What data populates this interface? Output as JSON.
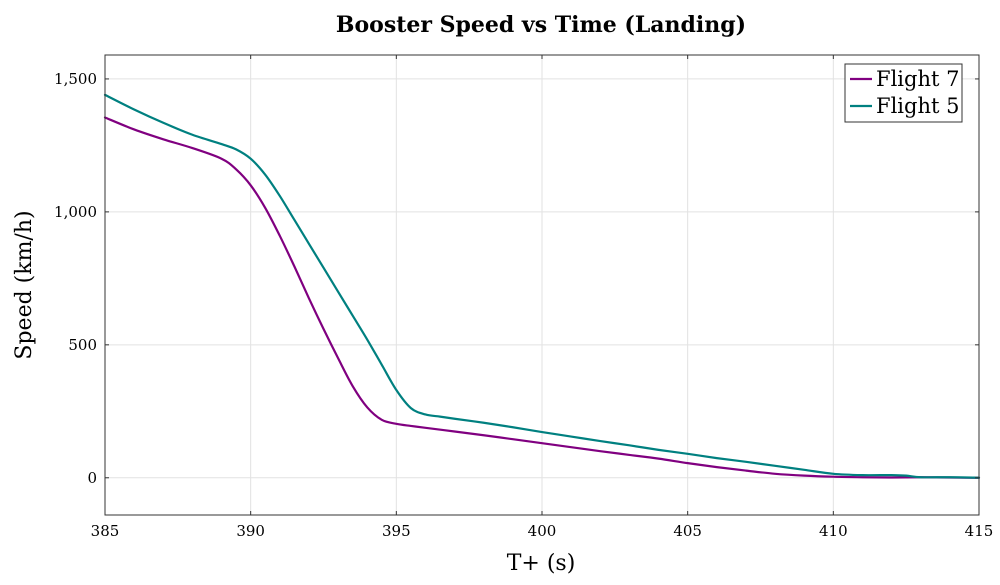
{
  "chart_data": {
    "type": "line",
    "title": "Booster Speed vs Time (Landing)",
    "xlabel": "T+ (s)",
    "ylabel": "Speed (km/h)",
    "xlim": [
      385,
      415
    ],
    "ylim": [
      -140,
      1590
    ],
    "x_ticks": [
      385,
      390,
      395,
      400,
      405,
      410,
      415
    ],
    "x_tick_labels": [
      "385",
      "390",
      "395",
      "400",
      "405",
      "410",
      "415"
    ],
    "y_ticks": [
      0,
      500,
      1000,
      1500
    ],
    "y_tick_labels": [
      "0",
      "500",
      "1,000",
      "1,500"
    ],
    "grid": true,
    "legend_position": "top-right",
    "series": [
      {
        "name": "Flight 7",
        "color": "#800080",
        "x": [
          385,
          386,
          387,
          388,
          389,
          389.5,
          390,
          390.5,
          391,
          391.5,
          392,
          392.5,
          393,
          393.5,
          394,
          394.5,
          395,
          395.5,
          396,
          397,
          398,
          399,
          400,
          401,
          402,
          403,
          404,
          405,
          406,
          407,
          408,
          409,
          410,
          411,
          412,
          413,
          414,
          415
        ],
        "values": [
          1355,
          1310,
          1273,
          1240,
          1200,
          1160,
          1100,
          1015,
          910,
          795,
          675,
          560,
          450,
          345,
          265,
          218,
          203,
          195,
          188,
          174,
          160,
          145,
          130,
          115,
          100,
          86,
          72,
          55,
          40,
          27,
          15,
          8,
          4,
          2,
          1,
          2,
          1,
          0
        ]
      },
      {
        "name": "Flight 5",
        "color": "#008080",
        "x": [
          385,
          386,
          387,
          388,
          389,
          389.5,
          390,
          390.5,
          391,
          391.5,
          392,
          392.5,
          393,
          393.5,
          394,
          394.5,
          395,
          395.5,
          396,
          396.5,
          397,
          398,
          399,
          400,
          401,
          402,
          403,
          404,
          405,
          406,
          407,
          408,
          409,
          410,
          411,
          412,
          412.5,
          413,
          414,
          415
        ],
        "values": [
          1440,
          1385,
          1335,
          1290,
          1255,
          1235,
          1200,
          1140,
          1060,
          970,
          880,
          790,
          700,
          610,
          520,
          425,
          330,
          262,
          238,
          230,
          222,
          207,
          190,
          172,
          155,
          138,
          122,
          105,
          90,
          74,
          60,
          45,
          30,
          15,
          10,
          10,
          8,
          2,
          2,
          0
        ]
      }
    ]
  }
}
